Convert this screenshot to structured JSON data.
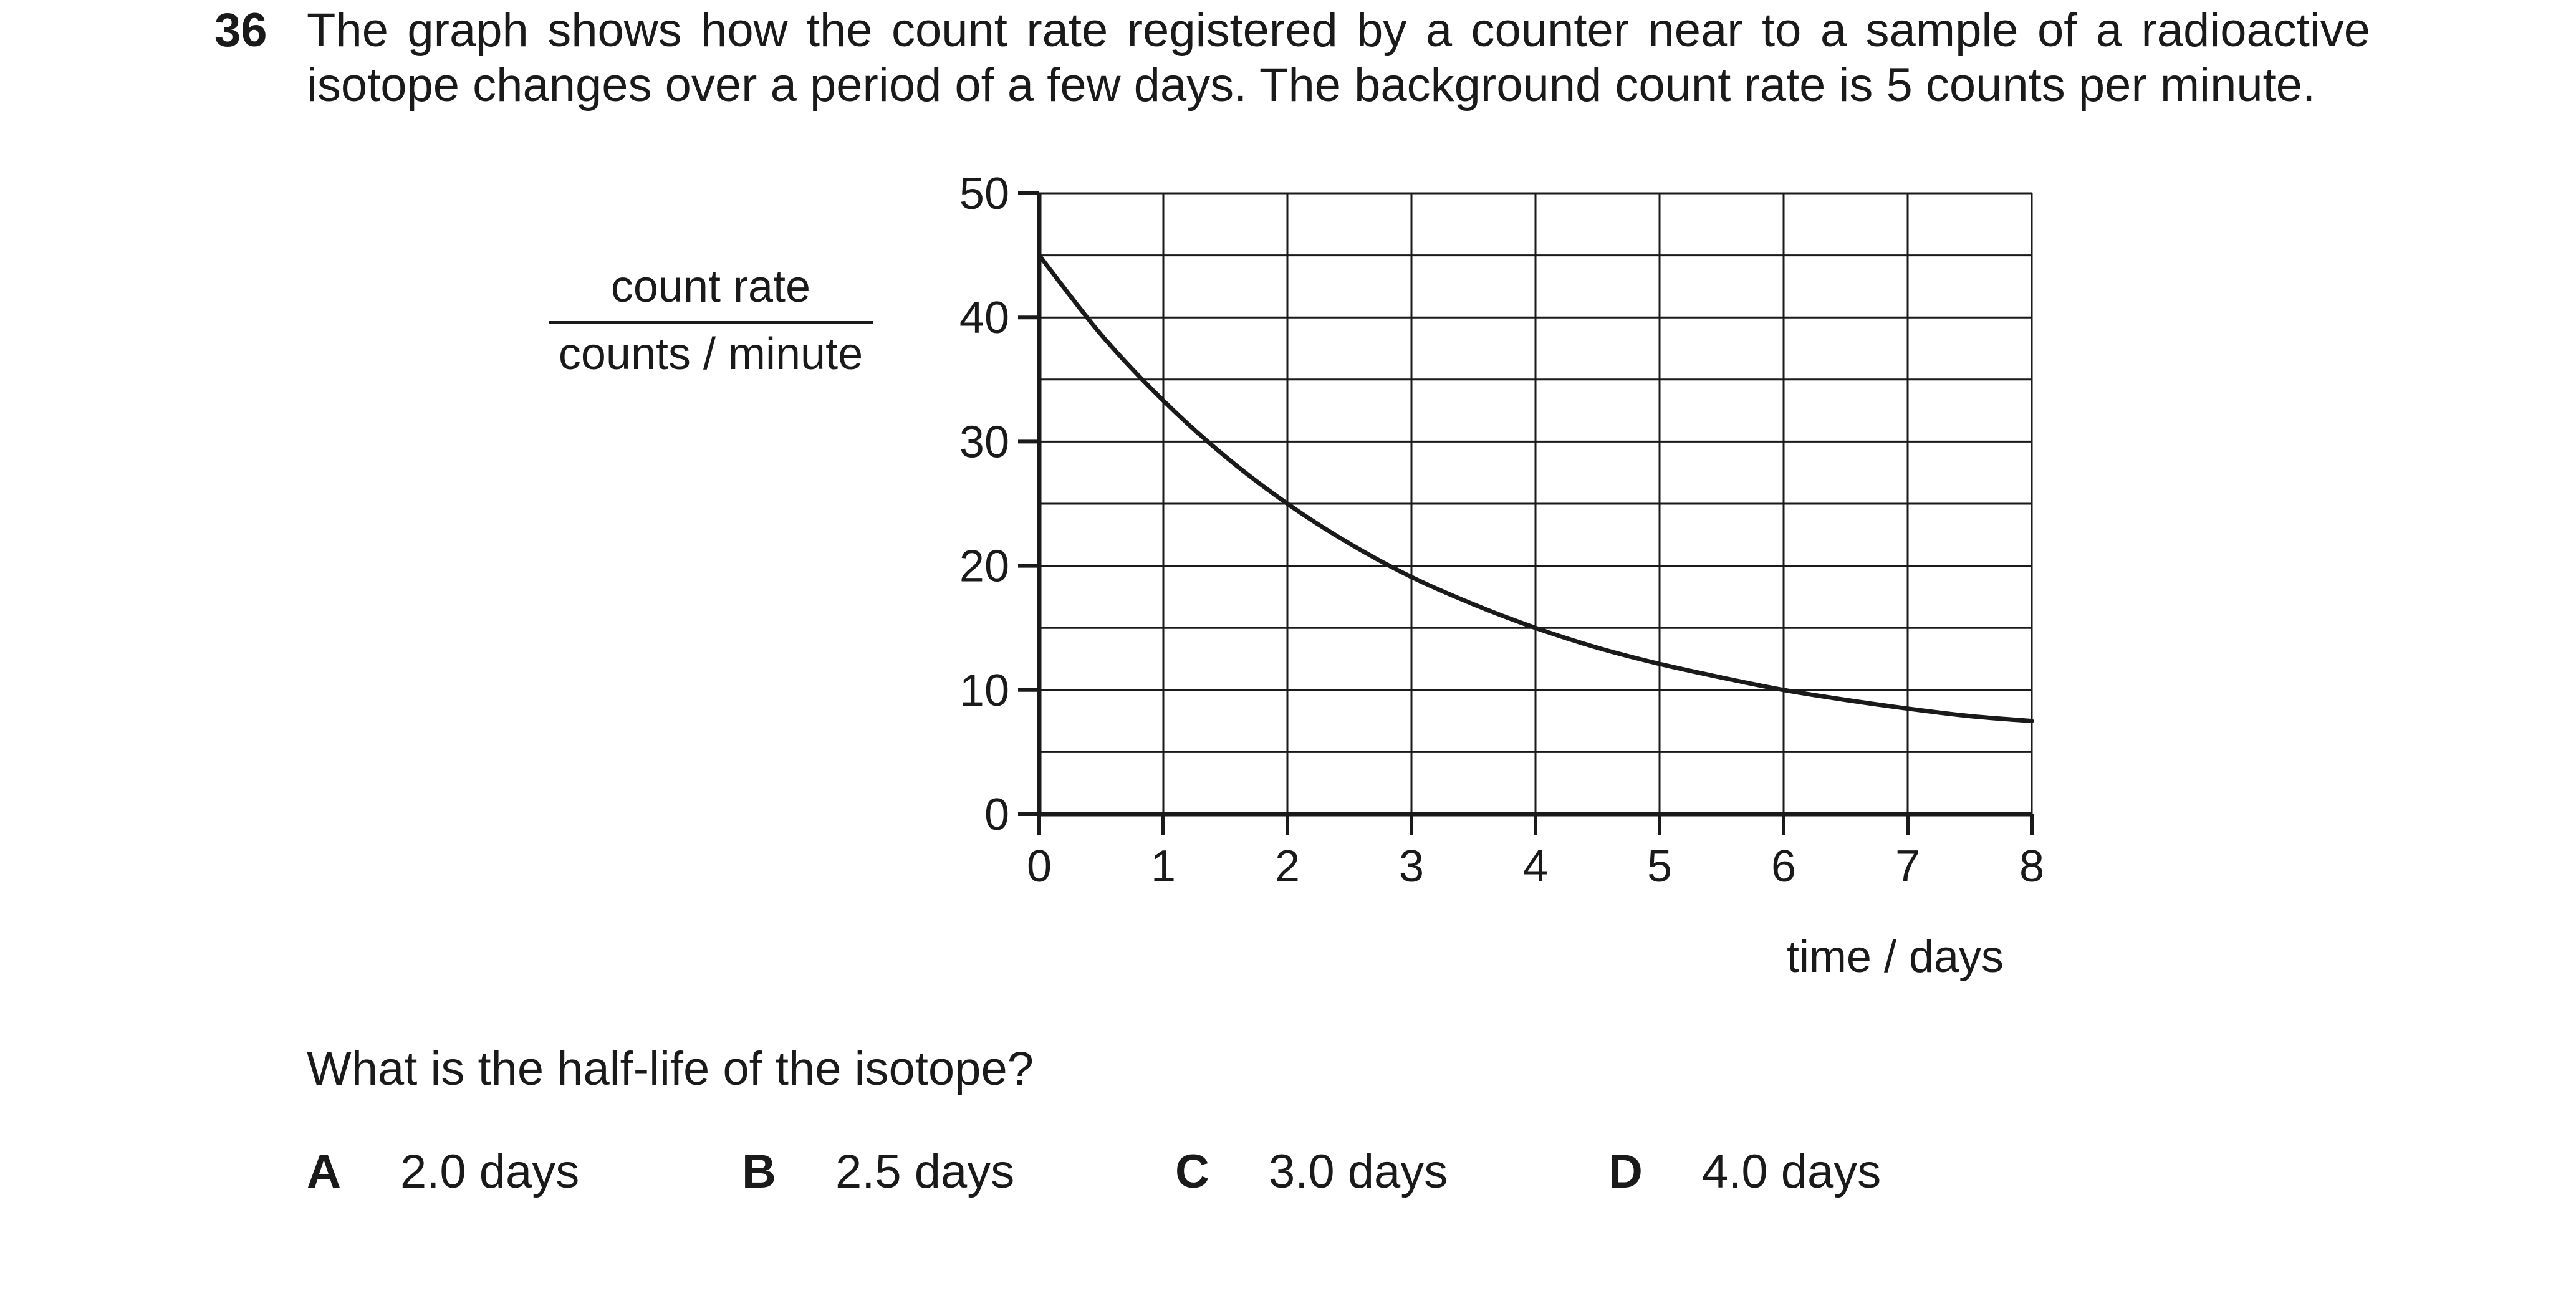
{
  "question": {
    "number": "36",
    "stem_line1": "The graph shows how the count rate registered by a counter near to a sample of a radioactive",
    "stem_line2": "isotope changes over a period of a few days. The background count rate is 5 counts per minute.",
    "prompt": "What is the half-life of the isotope?"
  },
  "options": [
    {
      "letter": "A",
      "text": "2.0 days"
    },
    {
      "letter": "B",
      "text": "2.5 days"
    },
    {
      "letter": "C",
      "text": "3.0 days"
    },
    {
      "letter": "D",
      "text": "4.0 days"
    }
  ],
  "chart_data": {
    "type": "line",
    "ylabel_numerator": "count rate",
    "ylabel_denominator": "counts / minute",
    "xlabel": "time / days",
    "xlim": [
      0,
      8
    ],
    "ylim": [
      0,
      50
    ],
    "x_ticks": [
      0,
      1,
      2,
      3,
      4,
      5,
      6,
      7,
      8
    ],
    "y_ticks": [
      0,
      10,
      20,
      30,
      40,
      50
    ],
    "x_tick_labels": [
      "0",
      "1",
      "2",
      "3",
      "4",
      "5",
      "6",
      "7",
      "8"
    ],
    "y_tick_labels": [
      "0",
      "10",
      "20",
      "30",
      "40",
      "50"
    ],
    "grid": true,
    "grid_minor_y_step": 5,
    "line_color": "#1a1a1a",
    "series": [
      {
        "x": [
          0,
          0.5,
          1,
          1.5,
          2,
          2.5,
          3,
          3.5,
          4,
          4.5,
          5,
          5.5,
          6,
          6.5,
          7,
          7.5,
          8
        ],
        "y": [
          45,
          38.6,
          33.3,
          28.8,
          25,
          21.8,
          19.1,
          16.9,
          15,
          13.4,
          12.1,
          11,
          10,
          9.2,
          8.5,
          7.9,
          7.5
        ]
      }
    ]
  }
}
